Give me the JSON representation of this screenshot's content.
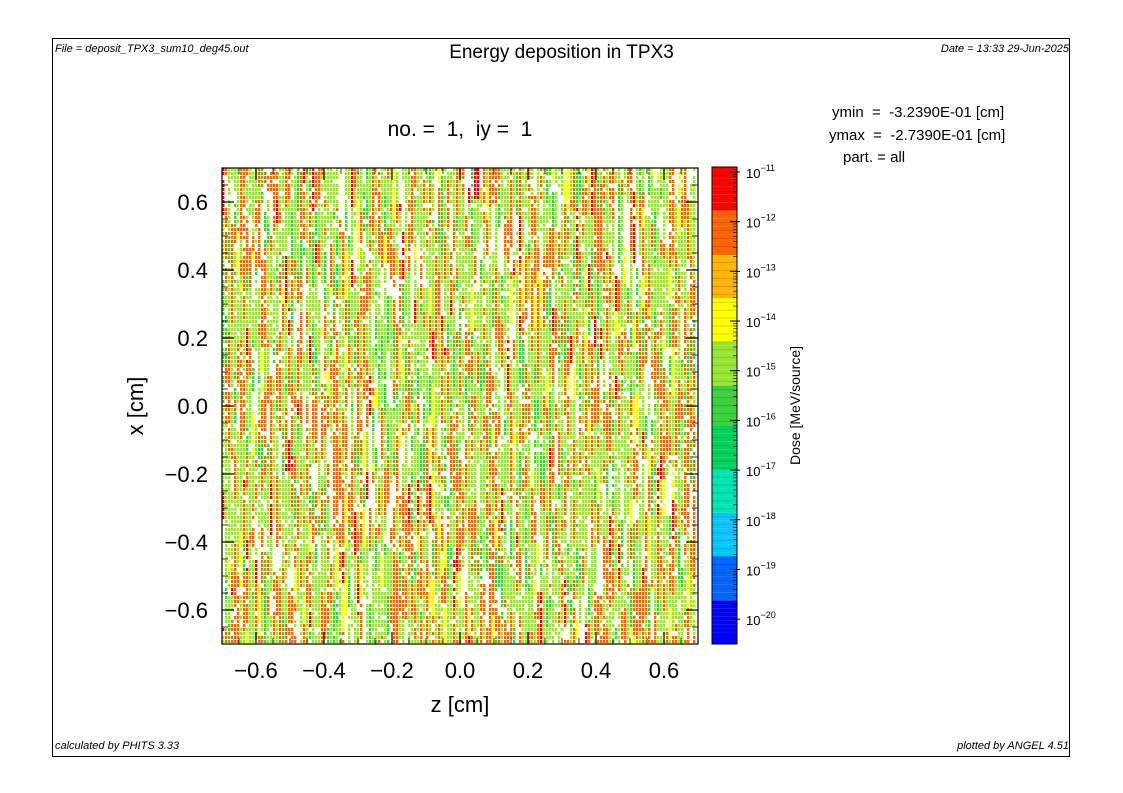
{
  "header": {
    "file": "File = deposit_TPX3_sum10_deg45.out",
    "title": "Energy deposition in TPX3",
    "date": "Date = 13:33 29-Jun-2025",
    "subtitle": "no. =  1,  iy =  1"
  },
  "info": {
    "ymin": "ymin  =  -3.2390E-01 [cm]",
    "ymax": "ymax  =  -2.7390E-01 [cm]",
    "part": "part. = all"
  },
  "footer": {
    "calculated": "calculated by PHITS 3.33",
    "plotted": "plotted by ANGEL 4.51"
  },
  "chart_data": {
    "type": "heatmap",
    "title": "Energy deposition in TPX3",
    "subtitle": "no. =  1,  iy =  1",
    "xlabel": "z [cm]",
    "ylabel": "x [cm]",
    "xlim": [
      -0.7,
      0.7
    ],
    "ylim": [
      -0.7,
      0.7
    ],
    "x_ticks": [
      -0.6,
      -0.4,
      -0.2,
      0.0,
      0.2,
      0.4,
      0.6
    ],
    "y_ticks": [
      0.6,
      0.4,
      0.2,
      0.0,
      -0.2,
      -0.4,
      -0.6
    ],
    "x_tick_labels": [
      "−0.6",
      "−0.4",
      "−0.2",
      "0.0",
      "0.2",
      "0.4",
      "0.6"
    ],
    "y_tick_labels": [
      "0.6",
      "0.4",
      "0.2",
      "0.0",
      "−0.2",
      "−0.4",
      "−0.6"
    ],
    "colorbar": {
      "label": "Dose [MeV/source]",
      "scale": "log",
      "min_exponent": -20.5,
      "max_exponent": -10.9,
      "tick_exponents": [
        -11,
        -12,
        -13,
        -14,
        -15,
        -16,
        -17,
        -18,
        -19,
        -20
      ],
      "tick_base": "10",
      "colors": [
        "#0000ff",
        "#0066ff",
        "#00c8ff",
        "#00e6b4",
        "#00d25a",
        "#3cd23c",
        "#96e632",
        "#ffff00",
        "#ffb400",
        "#ff6400",
        "#ff0000"
      ]
    },
    "dominant_exponent_range": [
      -14.5,
      -11.5
    ],
    "sparse_cells_description_values": {
      "green_share": 0.55,
      "orange_share": 0.3,
      "red_share": 0.03,
      "blank_share": 0.12
    }
  }
}
